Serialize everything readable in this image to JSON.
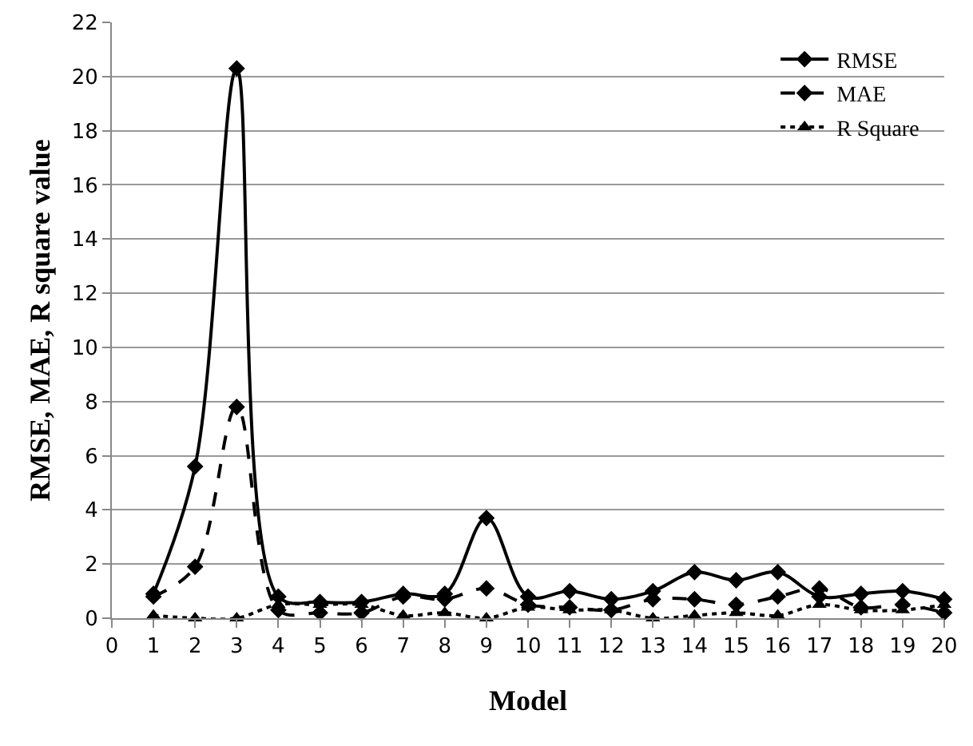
{
  "chart_data": {
    "type": "line",
    "xlabel": "Model",
    "ylabel": "RMSE, MAE, R square value",
    "x": [
      1,
      2,
      3,
      4,
      5,
      6,
      7,
      8,
      9,
      10,
      11,
      12,
      13,
      14,
      15,
      16,
      17,
      18,
      19,
      20
    ],
    "series": [
      {
        "name": "RMSE",
        "color": "#000000",
        "marker": "diamond",
        "line_style": "solid",
        "values": [
          0.9,
          5.6,
          20.3,
          0.8,
          0.6,
          0.6,
          0.9,
          0.9,
          3.7,
          0.8,
          1.0,
          0.7,
          1.0,
          1.7,
          1.4,
          1.7,
          0.8,
          0.9,
          1.0,
          0.7
        ]
      },
      {
        "name": "MAE",
        "color": "#000000",
        "marker": "diamond",
        "line_style": "dashed",
        "values": [
          0.8,
          1.9,
          7.8,
          0.3,
          0.2,
          0.2,
          0.8,
          0.7,
          1.1,
          0.5,
          0.4,
          0.3,
          0.7,
          0.7,
          0.5,
          0.8,
          1.1,
          0.4,
          0.5,
          0.2
        ]
      },
      {
        "name": "R Square",
        "color": "#000000",
        "marker": "triangle",
        "line_style": "dotted",
        "values": [
          0.1,
          0.0,
          0.0,
          0.5,
          0.5,
          0.5,
          0.1,
          0.2,
          0.0,
          0.4,
          0.3,
          0.3,
          0.0,
          0.1,
          0.2,
          0.1,
          0.5,
          0.3,
          0.3,
          0.5
        ]
      }
    ],
    "xlim": [
      0,
      20
    ],
    "xticks": [
      0,
      1,
      2,
      3,
      4,
      5,
      6,
      7,
      8,
      9,
      10,
      11,
      12,
      13,
      14,
      15,
      16,
      17,
      18,
      19,
      20
    ],
    "ylim": [
      0,
      22
    ],
    "yticks": [
      0,
      2,
      4,
      6,
      8,
      10,
      12,
      14,
      16,
      18,
      20,
      22
    ],
    "grid": "y",
    "legend": "top right"
  }
}
